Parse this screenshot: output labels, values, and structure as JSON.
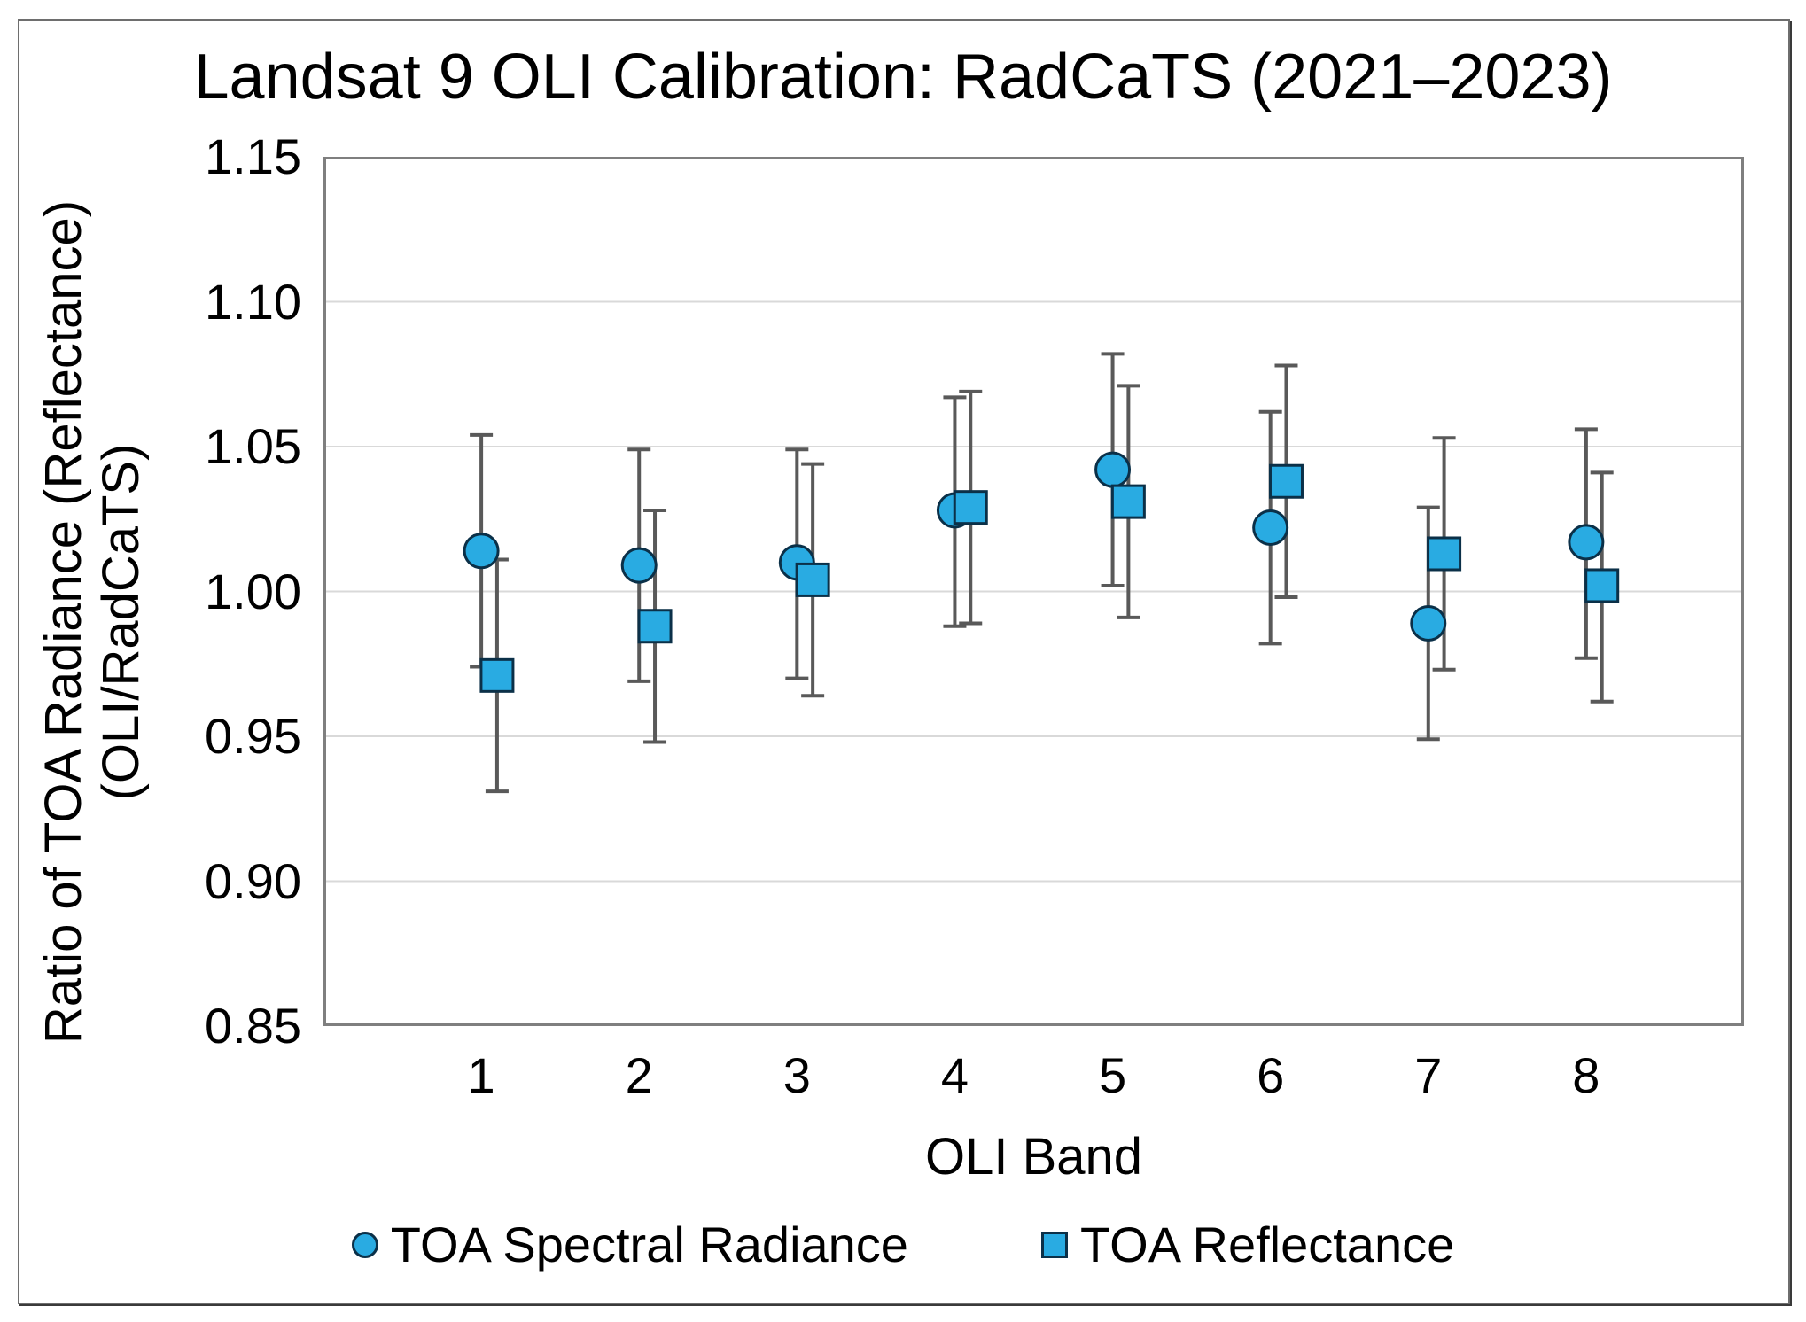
{
  "chart_data": {
    "type": "scatter",
    "title": "Landsat 9 OLI Calibration: RadCaTS (2021–2023)",
    "xlabel": "OLI Band",
    "ylabel_line1": "Ratio of TOA Radiance (Reflectance)",
    "ylabel_line2": "(OLI/RadCaTS)",
    "xlim": [
      0,
      9
    ],
    "ylim": [
      0.85,
      1.15
    ],
    "ytick_labels": [
      "1.15",
      "1.10",
      "1.05",
      "1.00",
      "0.95",
      "0.90",
      "0.85"
    ],
    "xtick_labels": [
      "1",
      "2",
      "3",
      "4",
      "5",
      "6",
      "7",
      "8"
    ],
    "grid": true,
    "legend_position": "bottom",
    "error_bars": "symmetric, caps shown, values given as hi/lo",
    "series": [
      {
        "name": "TOA Spectral Radiance",
        "marker": "circle",
        "x_offset": 0,
        "points": [
          {
            "band": 1,
            "y": 1.014,
            "hi": 1.054,
            "lo": 0.974
          },
          {
            "band": 2,
            "y": 1.009,
            "hi": 1.049,
            "lo": 0.969
          },
          {
            "band": 3,
            "y": 1.01,
            "hi": 1.049,
            "lo": 0.97
          },
          {
            "band": 4,
            "y": 1.028,
            "hi": 1.067,
            "lo": 0.988
          },
          {
            "band": 5,
            "y": 1.042,
            "hi": 1.082,
            "lo": 1.002
          },
          {
            "band": 6,
            "y": 1.022,
            "hi": 1.062,
            "lo": 0.982
          },
          {
            "band": 7,
            "y": 0.989,
            "hi": 1.029,
            "lo": 0.949
          },
          {
            "band": 8,
            "y": 1.017,
            "hi": 1.056,
            "lo": 0.977
          }
        ]
      },
      {
        "name": "TOA Reflectance",
        "marker": "square",
        "x_offset": 0.1,
        "points": [
          {
            "band": 1,
            "y": 0.971,
            "hi": 1.011,
            "lo": 0.931
          },
          {
            "band": 2,
            "y": 0.988,
            "hi": 1.028,
            "lo": 0.948
          },
          {
            "band": 3,
            "y": 1.004,
            "hi": 1.044,
            "lo": 0.964
          },
          {
            "band": 4,
            "y": 1.029,
            "hi": 1.069,
            "lo": 0.989
          },
          {
            "band": 5,
            "y": 1.031,
            "hi": 1.071,
            "lo": 0.991
          },
          {
            "band": 6,
            "y": 1.038,
            "hi": 1.078,
            "lo": 0.998
          },
          {
            "band": 7,
            "y": 1.013,
            "hi": 1.053,
            "lo": 0.973
          },
          {
            "band": 8,
            "y": 1.002,
            "hi": 1.041,
            "lo": 0.962
          }
        ]
      }
    ],
    "colors": {
      "marker_fill": "#29ABE2",
      "marker_stroke": "#0B3048",
      "error_bar": "#595959",
      "grid": "#D9D9D9",
      "plot_border": "#7F7F7F",
      "text": "#000000"
    }
  }
}
